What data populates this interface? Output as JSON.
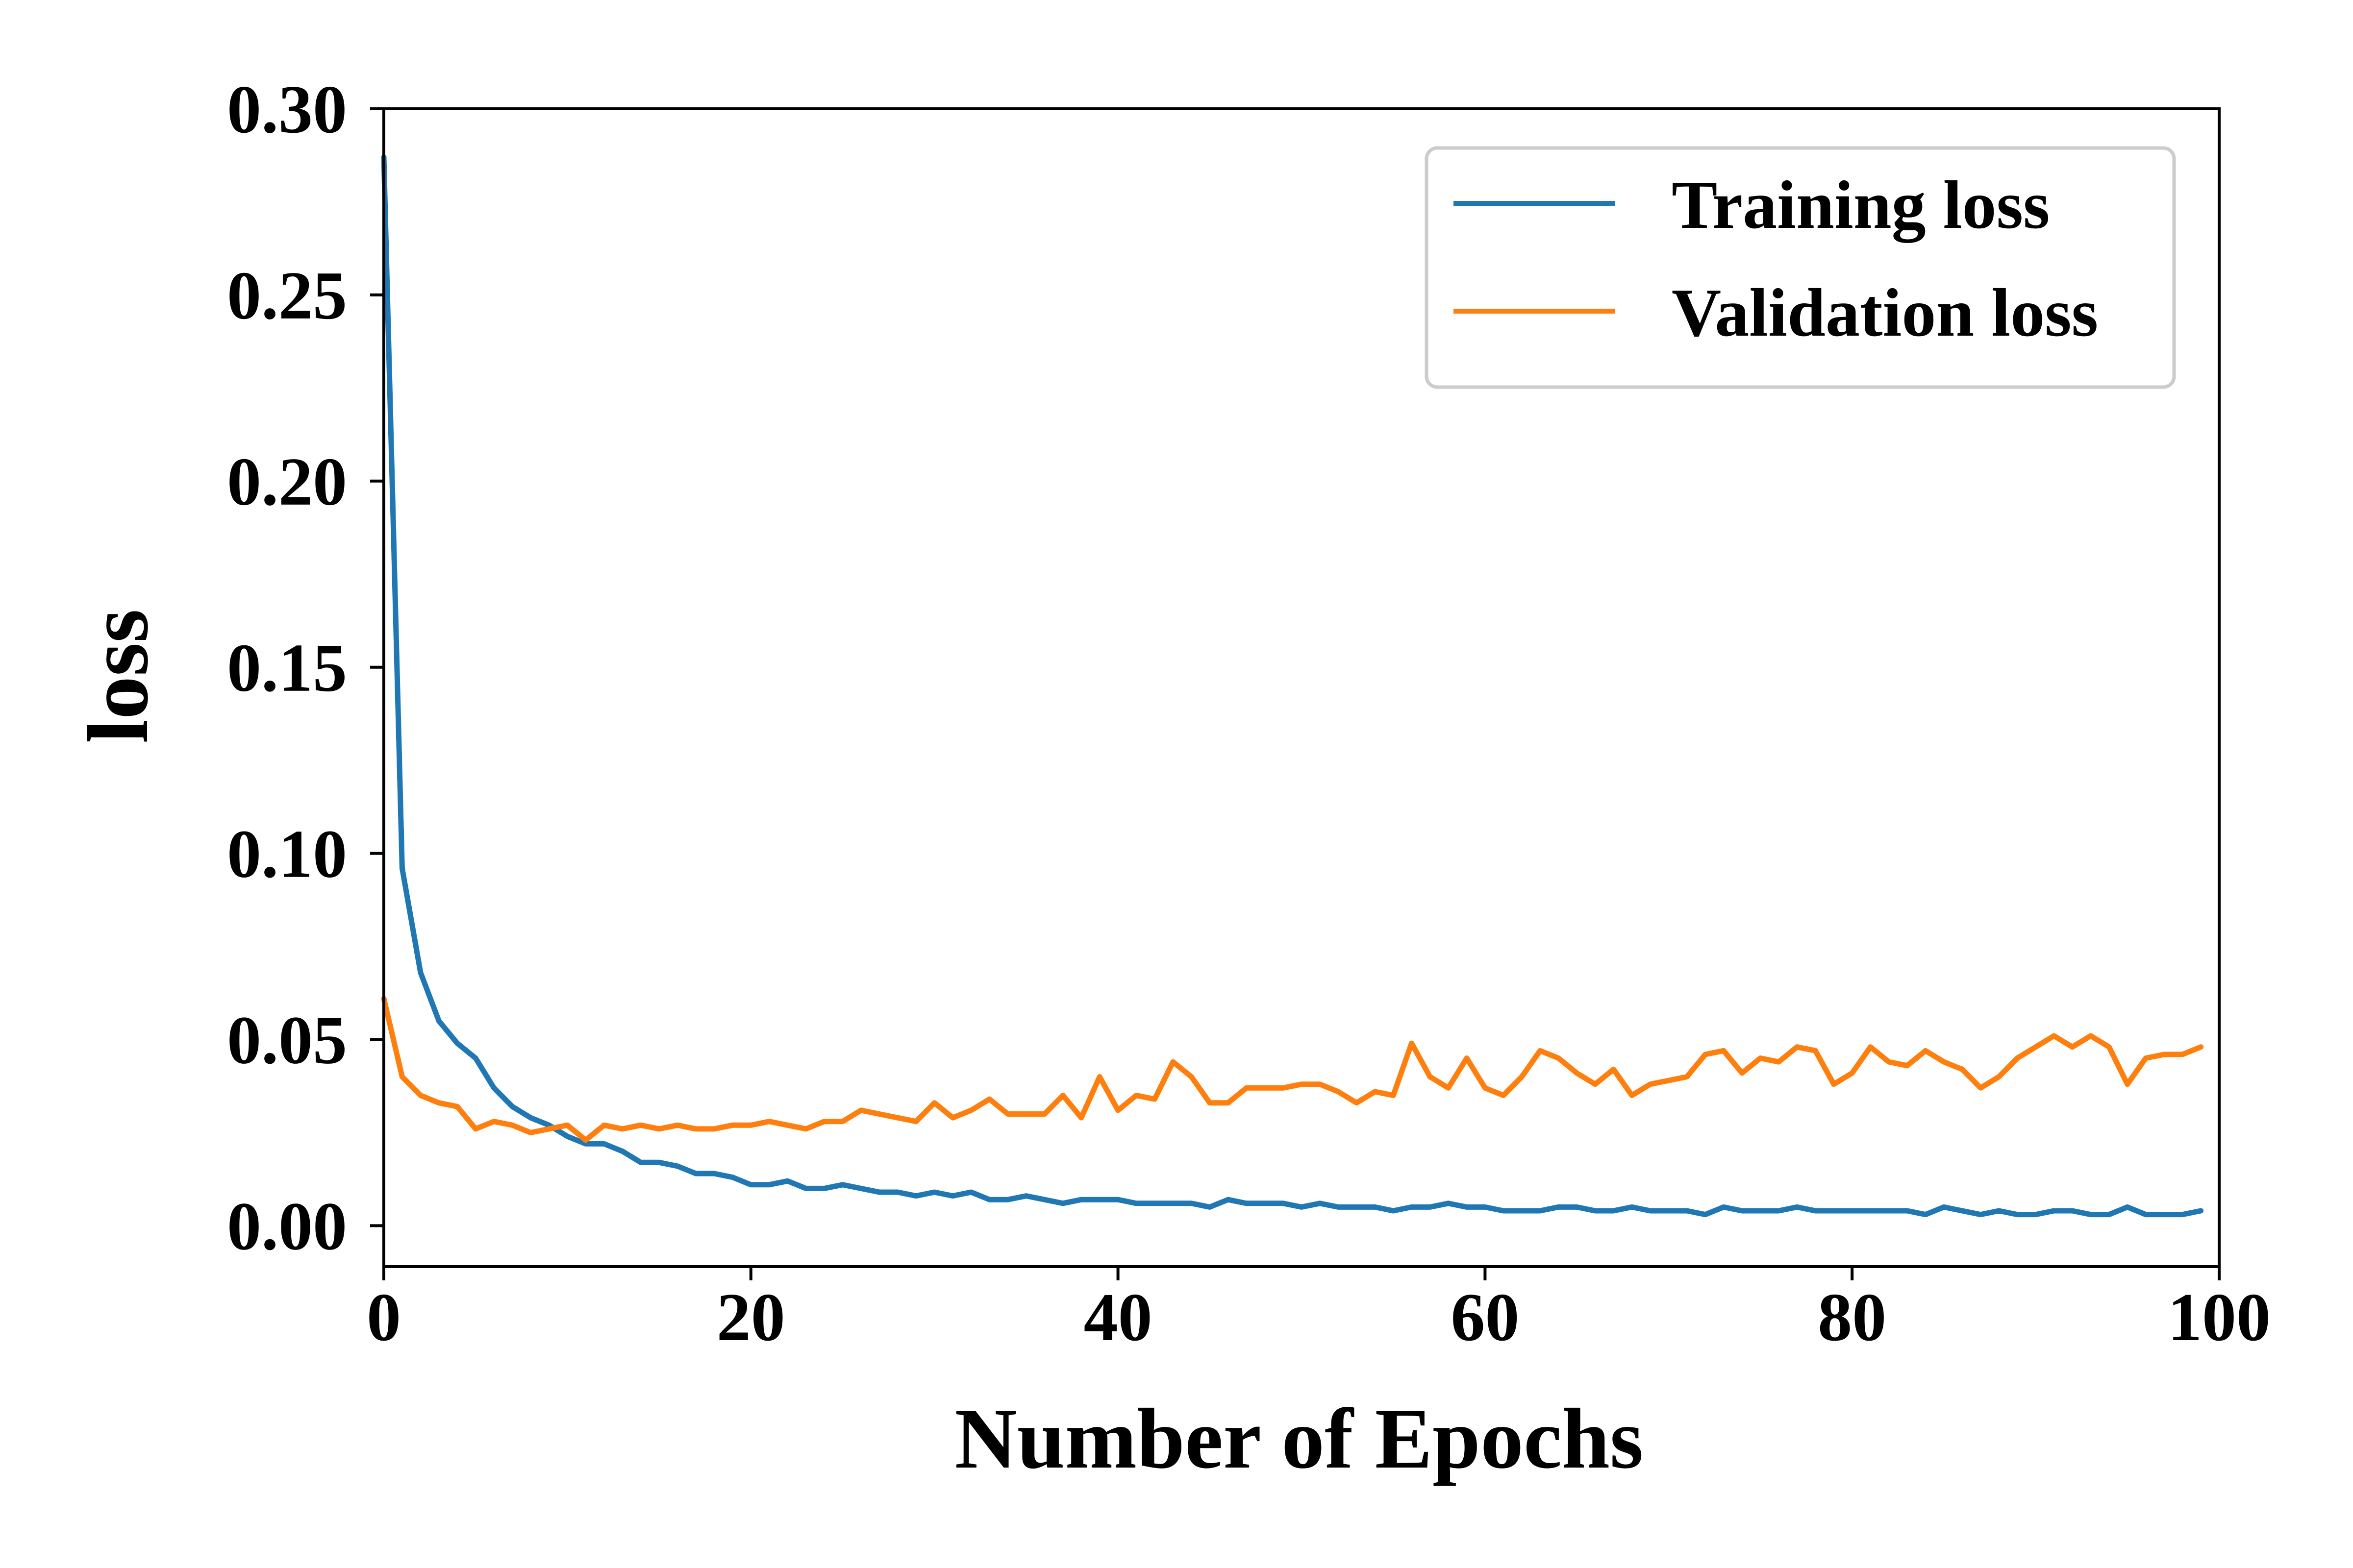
{
  "chart_data": {
    "type": "line",
    "title": "",
    "xlabel": "Number of Epochs",
    "ylabel": "loss",
    "xlim": [
      0,
      100
    ],
    "ylim": [
      -0.011,
      0.3
    ],
    "xticks": [
      0,
      20,
      40,
      60,
      80,
      100
    ],
    "xtick_labels": [
      "0",
      "20",
      "40",
      "60",
      "80",
      "100"
    ],
    "yticks": [
      0.0,
      0.05,
      0.1,
      0.15,
      0.2,
      0.25,
      0.3
    ],
    "ytick_labels": [
      "0.00",
      "0.05",
      "0.10",
      "0.15",
      "0.20",
      "0.25",
      "0.30"
    ],
    "grid": false,
    "legend_position": "top-right",
    "series": [
      {
        "name": "Training loss",
        "color": "#1f77b4",
        "values": [
          0.287,
          0.096,
          0.068,
          0.055,
          0.049,
          0.045,
          0.037,
          0.032,
          0.029,
          0.027,
          0.024,
          0.022,
          0.022,
          0.02,
          0.017,
          0.017,
          0.016,
          0.014,
          0.014,
          0.013,
          0.011,
          0.011,
          0.012,
          0.01,
          0.01,
          0.011,
          0.01,
          0.009,
          0.009,
          0.008,
          0.009,
          0.008,
          0.009,
          0.007,
          0.007,
          0.008,
          0.007,
          0.006,
          0.007,
          0.007,
          0.007,
          0.006,
          0.006,
          0.006,
          0.006,
          0.005,
          0.007,
          0.006,
          0.006,
          0.006,
          0.005,
          0.006,
          0.005,
          0.005,
          0.005,
          0.004,
          0.005,
          0.005,
          0.006,
          0.005,
          0.005,
          0.004,
          0.004,
          0.004,
          0.005,
          0.005,
          0.004,
          0.004,
          0.005,
          0.004,
          0.004,
          0.004,
          0.003,
          0.005,
          0.004,
          0.004,
          0.004,
          0.005,
          0.004,
          0.004,
          0.004,
          0.004,
          0.004,
          0.004,
          0.003,
          0.005,
          0.004,
          0.003,
          0.004,
          0.003,
          0.003,
          0.004,
          0.004,
          0.003,
          0.003,
          0.005,
          0.003,
          0.003,
          0.003,
          0.004
        ]
      },
      {
        "name": "Validation loss",
        "color": "#ff7f0e",
        "values": [
          0.061,
          0.04,
          0.035,
          0.033,
          0.032,
          0.026,
          0.028,
          0.027,
          0.025,
          0.026,
          0.027,
          0.023,
          0.027,
          0.026,
          0.027,
          0.026,
          0.027,
          0.026,
          0.026,
          0.027,
          0.027,
          0.028,
          0.027,
          0.026,
          0.028,
          0.028,
          0.031,
          0.03,
          0.029,
          0.028,
          0.033,
          0.029,
          0.031,
          0.034,
          0.03,
          0.03,
          0.03,
          0.035,
          0.029,
          0.04,
          0.031,
          0.035,
          0.034,
          0.044,
          0.04,
          0.033,
          0.033,
          0.037,
          0.037,
          0.037,
          0.038,
          0.038,
          0.036,
          0.033,
          0.036,
          0.035,
          0.049,
          0.04,
          0.037,
          0.045,
          0.037,
          0.035,
          0.04,
          0.047,
          0.045,
          0.041,
          0.038,
          0.042,
          0.035,
          0.038,
          0.039,
          0.04,
          0.046,
          0.047,
          0.041,
          0.045,
          0.044,
          0.048,
          0.047,
          0.038,
          0.041,
          0.048,
          0.044,
          0.043,
          0.047,
          0.044,
          0.042,
          0.037,
          0.04,
          0.045,
          0.048,
          0.051,
          0.048,
          0.051,
          0.048,
          0.038,
          0.045,
          0.046,
          0.046,
          0.048
        ]
      }
    ]
  }
}
